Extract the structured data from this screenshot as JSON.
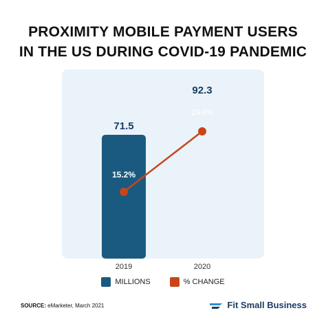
{
  "title": {
    "line1": "PROXIMITY MOBILE PAYMENT USERS",
    "line2": "IN THE US DURING COVID-19 PANDEMIC"
  },
  "chart_data": {
    "type": "bar+line",
    "categories": [
      "2019",
      "2020"
    ],
    "series": [
      {
        "name": "MILLIONS",
        "kind": "bar",
        "color": "#1b5a80",
        "values": [
          71.5,
          92.3
        ],
        "labels": [
          "71.5",
          "92.3"
        ]
      },
      {
        "name": "% CHANGE",
        "kind": "line",
        "color": "#c8451a",
        "values": [
          15.2,
          29.0
        ],
        "labels": [
          "15.2%",
          "29.0%"
        ]
      }
    ],
    "grid": false,
    "legend": "bottom-center"
  },
  "legend": {
    "items": [
      {
        "label": "MILLIONS",
        "color": "#1b5a80"
      },
      {
        "label": "% CHANGE",
        "color": "#c8451a"
      }
    ]
  },
  "footer": {
    "source_label": "SOURCE:",
    "source_text": " eMarketer, March 2021",
    "brand": "Fit Small Business",
    "brand_icon": "fsb-logo-icon"
  },
  "colors": {
    "panel": "#eaf3fa",
    "bar": "#1b5a80",
    "line": "#c8451a",
    "brand": "#1b3d63"
  }
}
